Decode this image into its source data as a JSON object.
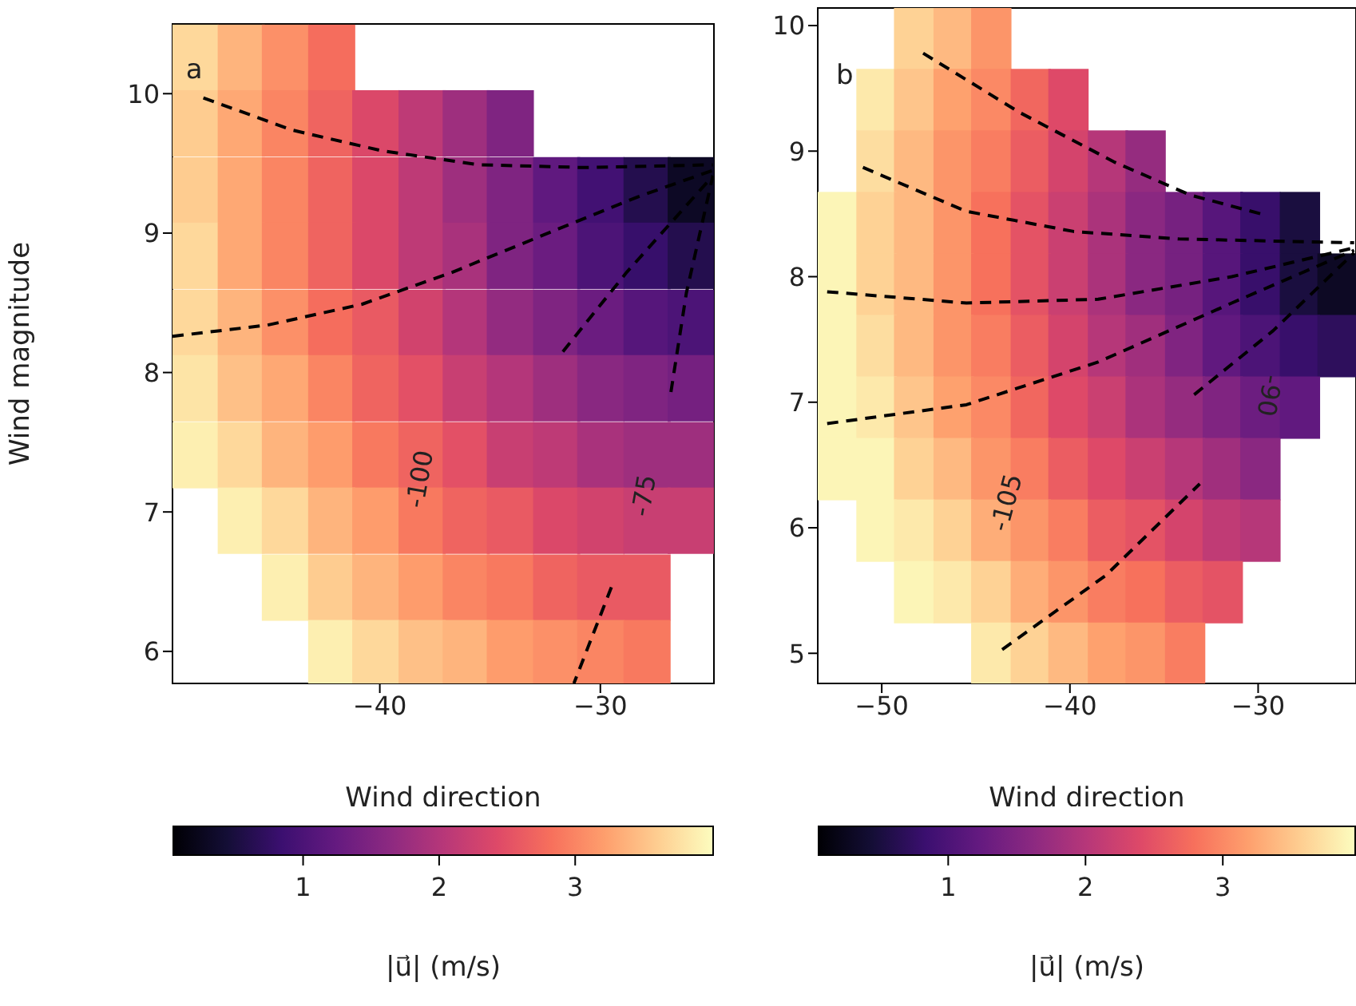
{
  "chart_data": [
    {
      "type": "heatmap",
      "xlabel": "Wind direction",
      "ylabel": "Wind magnitude",
      "clabel": "|u⃗| (m/s)",
      "x": [
        -48.4,
        -46.3,
        -44.3,
        -42.2,
        -40.2,
        -38.1,
        -36.1,
        -34.1,
        -32.0,
        -30.0,
        -27.9,
        -25.9
      ],
      "y": [
        10.26,
        9.79,
        9.31,
        8.84,
        8.36,
        7.89,
        7.41,
        6.94,
        6.46,
        5.99
      ],
      "xlim": [
        -49.4,
        -24.85
      ],
      "xticks": [
        {
          "value": -40,
          "label": "−40"
        },
        {
          "value": -30,
          "label": "−30"
        }
      ],
      "ylim": [
        5.77,
        10.5
      ],
      "yticks": [
        6,
        7,
        8,
        9,
        10
      ],
      "clim": [
        0.04,
        4.02
      ],
      "cticks": [
        1,
        2,
        3
      ],
      "cells": [
        [
          3.7,
          3.4,
          3.1,
          2.8,
          null,
          null,
          null,
          null,
          null,
          null,
          null,
          null
        ],
        [
          3.6,
          3.3,
          3.0,
          2.7,
          2.4,
          2.1,
          1.8,
          1.5,
          null,
          null,
          null,
          null
        ],
        [
          3.6,
          3.3,
          3.0,
          2.7,
          2.4,
          2.1,
          1.8,
          1.5,
          1.2,
          0.9,
          0.6,
          0.3
        ],
        [
          3.7,
          3.3,
          3.0,
          2.7,
          2.4,
          2.1,
          1.9,
          1.5,
          1.3,
          1.0,
          0.8,
          0.6
        ],
        [
          3.7,
          3.4,
          3.1,
          2.8,
          2.6,
          2.3,
          2.0,
          1.7,
          1.5,
          1.3,
          1.1,
          1.0
        ],
        [
          3.8,
          3.5,
          3.3,
          3.0,
          2.7,
          2.5,
          2.2,
          2.0,
          1.8,
          1.6,
          1.5,
          1.4
        ],
        [
          3.9,
          3.7,
          3.4,
          3.2,
          2.9,
          2.7,
          2.5,
          2.2,
          2.1,
          1.9,
          1.8,
          1.8
        ],
        [
          null,
          3.9,
          3.7,
          3.4,
          3.2,
          2.9,
          2.7,
          2.6,
          2.4,
          2.3,
          2.2,
          2.2
        ],
        [
          null,
          null,
          3.9,
          3.6,
          3.4,
          3.2,
          3.0,
          2.9,
          2.7,
          2.6,
          2.6,
          null
        ],
        [
          null,
          null,
          null,
          3.9,
          3.7,
          3.5,
          3.4,
          3.2,
          3.1,
          3.0,
          2.9,
          null
        ]
      ],
      "series": [
        {
          "type": "line",
          "color": "#000000",
          "line_style": "dashed",
          "x": [
            -48.0,
            -44.0,
            -39.9,
            -35.5,
            -30.7,
            -24.9
          ],
          "values": [
            9.97,
            9.74,
            9.59,
            9.49,
            9.47,
            9.49
          ]
        },
        {
          "type": "line",
          "color": "#000000",
          "line_style": "dashed",
          "x": [
            -49.4,
            -45.1,
            -40.8,
            -36.7,
            -31.9,
            -28.3,
            -24.9
          ],
          "values": [
            8.26,
            8.34,
            8.49,
            8.72,
            9.03,
            9.26,
            9.45
          ]
        },
        {
          "type": "line",
          "color": "#000000",
          "line_style": "dashed",
          "x": [
            -31.7,
            -28.8,
            -24.9
          ],
          "values": [
            8.15,
            8.72,
            9.41
          ]
        },
        {
          "type": "line",
          "color": "#000000",
          "line_style": "dashed",
          "x": [
            -26.8,
            -26.1,
            -24.9
          ],
          "values": [
            7.86,
            8.57,
            9.41
          ]
        },
        {
          "type": "line",
          "color": "#000000",
          "line_style": "dashed",
          "x": [
            -29.5,
            -31.2
          ],
          "values": [
            6.46,
            5.77
          ]
        }
      ],
      "annotations": [
        "a",
        "-100",
        "-75"
      ]
    },
    {
      "type": "heatmap",
      "xlabel": "Wind direction",
      "clabel": "|u⃗| (m/s)",
      "x": [
        -52.4,
        -50.3,
        -48.3,
        -46.2,
        -44.2,
        -42.1,
        -40.1,
        -38.0,
        -36.0,
        -33.9,
        -31.9,
        -29.9,
        -27.8,
        -25.8
      ],
      "y": [
        9.9,
        9.41,
        8.92,
        8.43,
        7.94,
        7.45,
        6.96,
        6.47,
        5.98,
        5.49,
        5.0
      ],
      "xlim": [
        -53.4,
        -24.8
      ],
      "xticks": [
        {
          "value": -50,
          "label": "−50"
        },
        {
          "value": -40,
          "label": "−40"
        },
        {
          "value": -30,
          "label": "−30"
        }
      ],
      "ylim": [
        4.76,
        10.14
      ],
      "yticks": [
        5,
        6,
        7,
        8,
        9,
        10
      ],
      "clim": [
        0.05,
        3.97
      ],
      "cticks": [
        1,
        2,
        3
      ],
      "cells": [
        [
          null,
          null,
          3.6,
          3.4,
          3.1,
          null,
          null,
          null,
          null,
          null,
          null,
          null,
          null,
          null
        ],
        [
          null,
          3.8,
          3.5,
          3.2,
          3.0,
          2.7,
          2.4,
          null,
          null,
          null,
          null,
          null,
          null,
          null
        ],
        [
          null,
          3.7,
          3.4,
          3.1,
          2.9,
          2.6,
          2.3,
          2.0,
          1.7,
          null,
          null,
          null,
          null,
          null
        ],
        [
          3.9,
          3.6,
          3.4,
          3.1,
          2.8,
          2.5,
          2.2,
          1.9,
          1.6,
          1.4,
          1.1,
          0.8,
          0.5,
          null
        ],
        [
          3.9,
          3.6,
          3.4,
          3.1,
          2.8,
          2.5,
          2.2,
          1.9,
          1.6,
          1.4,
          1.1,
          0.8,
          0.5,
          0.3
        ],
        [
          3.9,
          3.7,
          3.4,
          3.1,
          2.9,
          2.6,
          2.3,
          2.0,
          1.8,
          1.5,
          1.2,
          1.0,
          0.8,
          0.7
        ],
        [
          3.9,
          3.8,
          3.5,
          3.2,
          3.0,
          2.7,
          2.4,
          2.2,
          1.9,
          1.7,
          1.5,
          1.3,
          1.2,
          null
        ],
        [
          3.9,
          3.9,
          3.6,
          3.4,
          3.1,
          2.9,
          2.6,
          2.4,
          2.2,
          2.0,
          1.8,
          1.6,
          null,
          null
        ],
        [
          null,
          3.9,
          3.8,
          3.6,
          3.3,
          3.1,
          2.9,
          2.6,
          2.5,
          2.3,
          2.1,
          2.0,
          null,
          null
        ],
        [
          null,
          null,
          3.9,
          3.8,
          3.6,
          3.3,
          3.1,
          2.9,
          2.8,
          2.6,
          2.5,
          null,
          null,
          null
        ],
        [
          null,
          null,
          null,
          null,
          3.8,
          3.6,
          3.4,
          3.2,
          3.1,
          2.9,
          null,
          null,
          null,
          null
        ]
      ],
      "series": [
        {
          "type": "line",
          "color": "#000000",
          "line_style": "dashed",
          "x": [
            -47.8,
            -42.7,
            -37.6,
            -33.6,
            -29.6
          ],
          "values": [
            9.78,
            9.31,
            8.91,
            8.65,
            8.49
          ]
        },
        {
          "type": "line",
          "color": "#000000",
          "line_style": "dashed",
          "x": [
            -51.0,
            -45.5,
            -39.8,
            -34.2,
            -24.9
          ],
          "values": [
            8.87,
            8.52,
            8.36,
            8.3,
            8.27
          ]
        },
        {
          "type": "line",
          "color": "#000000",
          "line_style": "dashed",
          "x": [
            -52.9,
            -45.5,
            -38.5,
            -31.4,
            -24.9
          ],
          "values": [
            7.88,
            7.79,
            7.82,
            8.0,
            8.23
          ]
        },
        {
          "type": "line",
          "color": "#000000",
          "line_style": "dashed",
          "x": [
            -52.9,
            -45.5,
            -38.5,
            -31.4,
            -24.9
          ],
          "values": [
            6.83,
            6.98,
            7.32,
            7.79,
            8.21
          ]
        },
        {
          "type": "line",
          "color": "#000000",
          "line_style": "dashed",
          "x": [
            -33.4,
            -29.2,
            -24.9
          ],
          "values": [
            7.06,
            7.57,
            8.19
          ]
        },
        {
          "type": "line",
          "color": "#000000",
          "line_style": "dashed",
          "x": [
            -43.6,
            -38.1,
            -33.1
          ],
          "values": [
            5.03,
            5.62,
            6.35
          ]
        }
      ],
      "annotations": [
        "b",
        "-105",
        "-90"
      ]
    }
  ]
}
